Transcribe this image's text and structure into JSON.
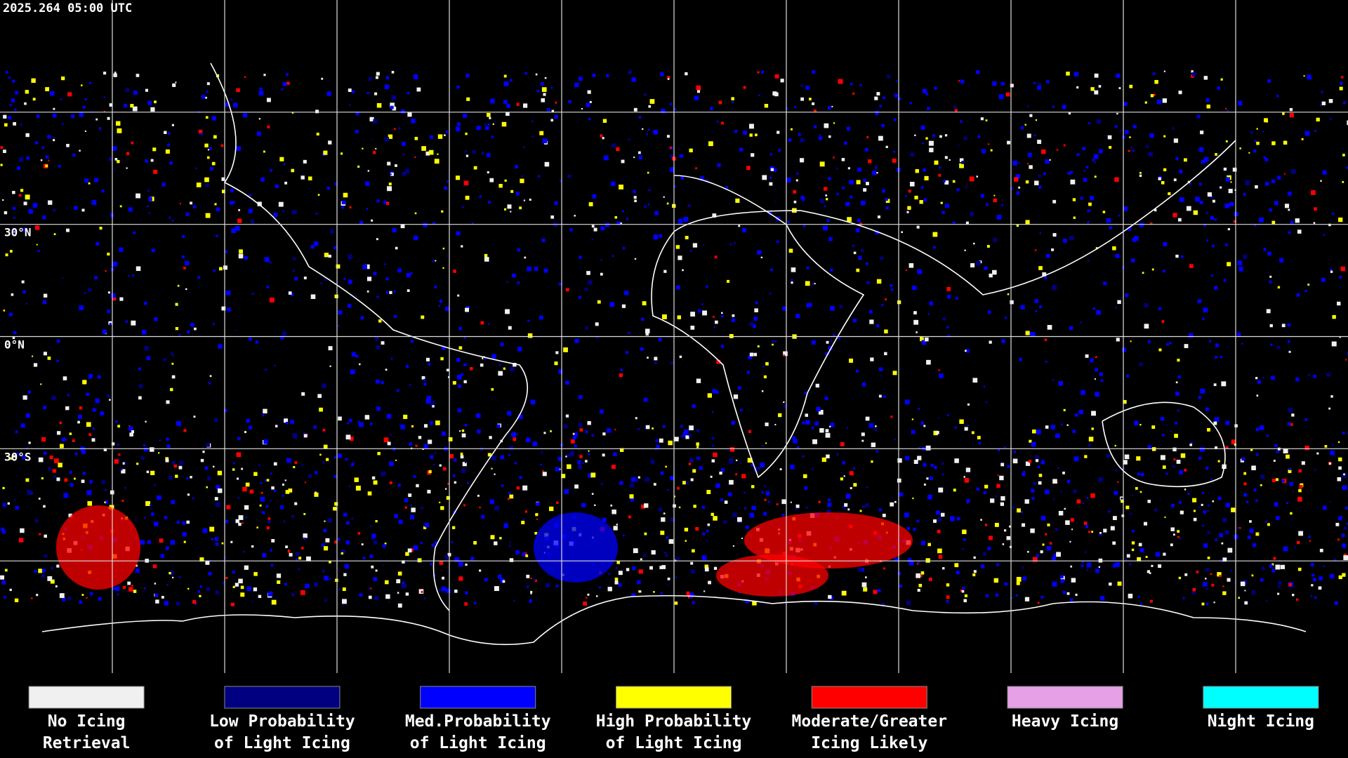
{
  "header": {
    "title": "2025.264 05:00 UTC"
  },
  "map": {
    "lat_labels": [
      "30°N",
      "0°N",
      "30°S"
    ]
  },
  "legend": {
    "items": [
      {
        "color": "#f0f0f0",
        "label_lines": [
          "No Icing",
          "Retrieval"
        ]
      },
      {
        "color": "#000080",
        "label_lines": [
          "Low Probability",
          "of Light Icing"
        ]
      },
      {
        "color": "#0000ff",
        "label_lines": [
          "Med.Probability",
          "of Light Icing"
        ]
      },
      {
        "color": "#ffff00",
        "label_lines": [
          "High Probability",
          "of Light Icing"
        ]
      },
      {
        "color": "#ff0000",
        "label_lines": [
          "Moderate/Greater",
          "Icing Likely"
        ]
      },
      {
        "color": "#e6a0e6",
        "label_lines": [
          "Heavy Icing"
        ]
      },
      {
        "color": "#00ffff",
        "label_lines": [
          "Night Icing"
        ]
      }
    ]
  }
}
